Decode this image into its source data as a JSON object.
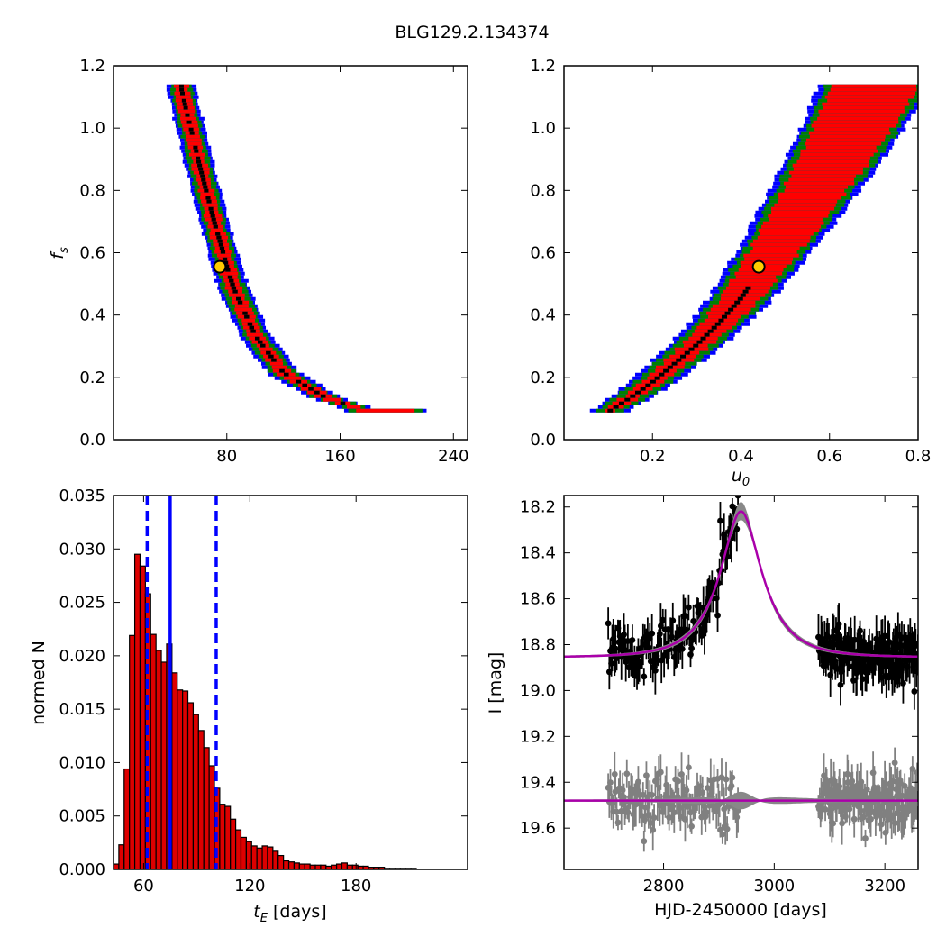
{
  "figure": {
    "title": "BLG129.2.134374"
  },
  "colors": {
    "sigma1": "#000000",
    "sigma2": "#ff0000",
    "sigma3": "#008000",
    "sigma4": "#0000ff",
    "best_marker_fill": "#ffcc00",
    "hist_bar": "#dd0000",
    "hist_lines": "#0000ff",
    "model_curve": "#aa00aa",
    "model_band": "#888888",
    "data_points": "#000000",
    "residuals": "#808080"
  },
  "chart_data": [
    {
      "id": "fs_vs_tE",
      "type": "heatmap",
      "xlabel": "",
      "ylabel": "f_s",
      "xlim": [
        0,
        250
      ],
      "ylim": [
        0.0,
        1.2
      ],
      "xticks": [
        "80",
        "160",
        "240"
      ],
      "yticks": [
        "0.0",
        "0.2",
        "0.4",
        "0.6",
        "0.8",
        "1.0",
        "1.2"
      ],
      "ridge": {
        "tE": [
          48,
          52,
          56,
          60,
          64,
          68,
          72,
          76,
          80,
          85,
          90,
          95,
          100,
          110,
          120,
          135,
          150,
          170,
          200,
          225
        ],
        "fs": [
          1.13,
          1.05,
          0.98,
          0.9,
          0.83,
          0.76,
          0.69,
          0.63,
          0.56,
          0.49,
          0.44,
          0.39,
          0.34,
          0.28,
          0.22,
          0.18,
          0.14,
          0.11,
          0.095,
          0.09
        ]
      },
      "best_fit": {
        "tE": 75,
        "fs": 0.555
      }
    },
    {
      "id": "fs_vs_u0",
      "type": "heatmap",
      "xlabel": "u_0",
      "ylabel": "",
      "xlim": [
        0.0,
        0.8
      ],
      "ylim": [
        0.0,
        1.2
      ],
      "xticks": [
        "0.2",
        "0.4",
        "0.6",
        "0.8"
      ],
      "yticks": [
        "0.0",
        "0.2",
        "0.4",
        "0.6",
        "0.8",
        "1.0",
        "1.2"
      ],
      "ridge": {
        "u0": [
          0.1,
          0.15,
          0.2,
          0.25,
          0.3,
          0.35,
          0.4,
          0.45,
          0.5,
          0.55,
          0.6,
          0.65,
          0.7
        ],
        "fs": [
          0.095,
          0.14,
          0.19,
          0.25,
          0.31,
          0.38,
          0.46,
          0.56,
          0.66,
          0.77,
          0.88,
          1.0,
          1.13
        ]
      },
      "best_fit": {
        "u0": 0.44,
        "fs": 0.555
      }
    },
    {
      "id": "tE_histogram",
      "type": "bar",
      "xlabel": "t_E [days]",
      "ylabel": "normed N",
      "xlim": [
        43,
        243
      ],
      "ylim": [
        0.0,
        0.035
      ],
      "xticks": [
        "60",
        "120",
        "180"
      ],
      "yticks": [
        "0.000",
        "0.005",
        "0.010",
        "0.015",
        "0.020",
        "0.025",
        "0.030",
        "0.035"
      ],
      "bin_width": 3,
      "bin_left_edges": [
        43,
        46,
        49,
        52,
        55,
        58,
        61,
        64,
        67,
        70,
        73,
        76,
        79,
        82,
        85,
        88,
        91,
        94,
        97,
        100,
        103,
        106,
        109,
        112,
        115,
        118,
        121,
        124,
        127,
        130,
        133,
        136,
        139,
        142,
        145,
        148,
        151,
        154,
        157,
        160,
        163,
        166,
        169,
        172,
        175,
        178,
        181,
        184,
        187,
        190,
        193,
        196,
        199,
        202,
        205,
        208,
        211
      ],
      "values": [
        0.0005,
        0.0023,
        0.0094,
        0.0219,
        0.0295,
        0.0284,
        0.0258,
        0.022,
        0.0205,
        0.0194,
        0.0211,
        0.0184,
        0.0168,
        0.0167,
        0.0156,
        0.0145,
        0.013,
        0.0114,
        0.0097,
        0.0076,
        0.0061,
        0.0059,
        0.0047,
        0.0037,
        0.003,
        0.0026,
        0.0022,
        0.002,
        0.0022,
        0.0021,
        0.0017,
        0.0013,
        0.0008,
        0.0007,
        0.0006,
        0.0005,
        0.0005,
        0.0004,
        0.0004,
        0.0004,
        0.0003,
        0.0004,
        0.0005,
        0.0006,
        0.0004,
        0.0004,
        0.0003,
        0.0003,
        0.0002,
        0.0002,
        0.0002,
        0.0001,
        0.0001,
        0.0001,
        0.0001,
        0.0001,
        0.0001
      ],
      "median_line": 75,
      "interval_lines": [
        62,
        101
      ]
    },
    {
      "id": "lightcurve",
      "type": "scatter",
      "xlabel": "HJD-2450000 [days]",
      "ylabel": "I [mag]",
      "xlim": [
        2620,
        3260
      ],
      "ylim": [
        19.78,
        18.15
      ],
      "xticks": [
        "2800",
        "3000",
        "3200"
      ],
      "yticks": [
        "18.2",
        "18.4",
        "18.6",
        "18.8",
        "19.0",
        "19.2",
        "19.4",
        "19.6"
      ],
      "model": {
        "t0": 2940,
        "tE": 75,
        "u0": 0.44,
        "fs": 0.555,
        "baseline_mag": 18.855,
        "residual_offset": 19.48
      },
      "observing_seasons": [
        [
          2700,
          2935
        ],
        [
          3080,
          3260
        ]
      ]
    }
  ]
}
